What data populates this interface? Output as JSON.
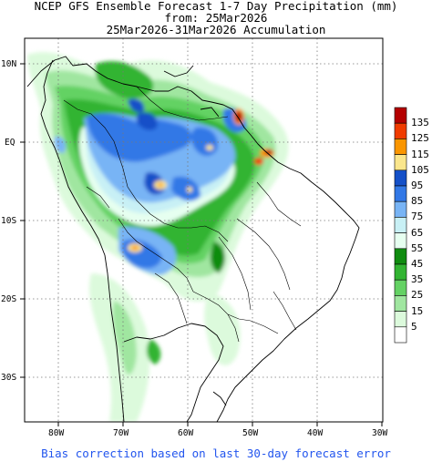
{
  "header": {
    "line1": "NCEP GFS Ensemble Forecast 1-7 Day Precipitation (mm)",
    "line2": "from: 25Mar2026",
    "line3": "25Mar2026-31Mar2026 Accumulation"
  },
  "lat_ticks": [
    "10N",
    "EQ",
    "10S",
    "20S",
    "30S"
  ],
  "lon_ticks": [
    "80W",
    "70W",
    "60W",
    "50W",
    "40W",
    "30W"
  ],
  "legend": {
    "bins": [
      {
        "label": "135",
        "color": "#b40000"
      },
      {
        "label": "125",
        "color": "#f03c00"
      },
      {
        "label": "115",
        "color": "#fa9600"
      },
      {
        "label": "105",
        "color": "#fae68c"
      },
      {
        "label": "95",
        "color": "#1450c8"
      },
      {
        "label": "85",
        "color": "#3278e6"
      },
      {
        "label": "75",
        "color": "#78b4f5"
      },
      {
        "label": "65",
        "color": "#c8f0f5"
      },
      {
        "label": "55",
        "color": "#e6fff0"
      },
      {
        "label": "45",
        "color": "#108c10"
      },
      {
        "label": "35",
        "color": "#32b432"
      },
      {
        "label": "25",
        "color": "#64d264"
      },
      {
        "label": "15",
        "color": "#a0e6a0"
      },
      {
        "label": "5",
        "color": "#dcfadc"
      }
    ],
    "bottom_color": "#ffffff"
  },
  "footer": "Bias correction based on last 30-day forecast error"
}
